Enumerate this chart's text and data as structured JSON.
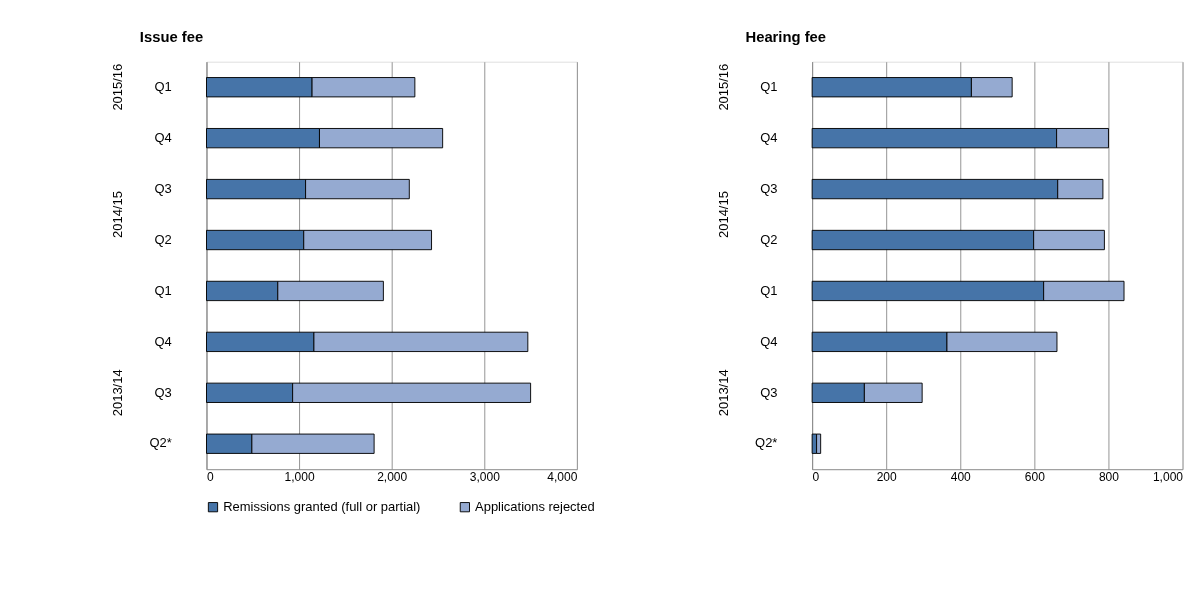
{
  "chart_data": [
    {
      "type": "bar",
      "orientation": "horizontal",
      "stacked": true,
      "title": "Issue fee",
      "categories": [
        "Q1",
        "Q4",
        "Q3",
        "Q2",
        "Q1",
        "Q4",
        "Q3",
        "Q2*"
      ],
      "series": [
        {
          "name": "Remissions granted (full or partial)",
          "color": "#4674a8",
          "values": [
            1140,
            1220,
            1070,
            1050,
            770,
            1160,
            930,
            490
          ]
        },
        {
          "name": "Applications rejected",
          "color": "#95aad1",
          "values": [
            1110,
            1330,
            1120,
            1380,
            1140,
            2310,
            2570,
            1320
          ]
        }
      ],
      "xlim": [
        0,
        4000
      ],
      "xticks": [
        0,
        {
          "value": 1000,
          "label": "1,000"
        },
        {
          "value": 2000,
          "label": "2,000"
        },
        {
          "value": 3000,
          "label": "3,000"
        },
        {
          "value": 4000,
          "label": "4,000"
        }
      ],
      "annotations": [
        "2015/16",
        "2014/15",
        "2013/14"
      ],
      "grid": "x",
      "legend": "bottom"
    },
    {
      "type": "bar",
      "orientation": "horizontal",
      "stacked": true,
      "title": "Hearing fee",
      "categories": [
        "Q1",
        "Q4",
        "Q3",
        "Q2",
        "Q1",
        "Q4",
        "Q3",
        "Q2*"
      ],
      "series": [
        {
          "name": "Remissions granted (full or partial)",
          "color": "#4674a8",
          "values": [
            430,
            660,
            663,
            598,
            625,
            364,
            141,
            12
          ]
        },
        {
          "name": "Applications rejected",
          "color": "#95aad1",
          "values": [
            110,
            140,
            122,
            191,
            217,
            297,
            156,
            11
          ]
        }
      ],
      "xlim": [
        0,
        1000
      ],
      "xticks": [
        0,
        200,
        400,
        600,
        800,
        {
          "value": 1000,
          "label": "1,000"
        }
      ],
      "annotations": [
        "2015/16",
        "2014/15",
        "2013/14"
      ],
      "grid": "x",
      "legend": "bottom"
    }
  ]
}
